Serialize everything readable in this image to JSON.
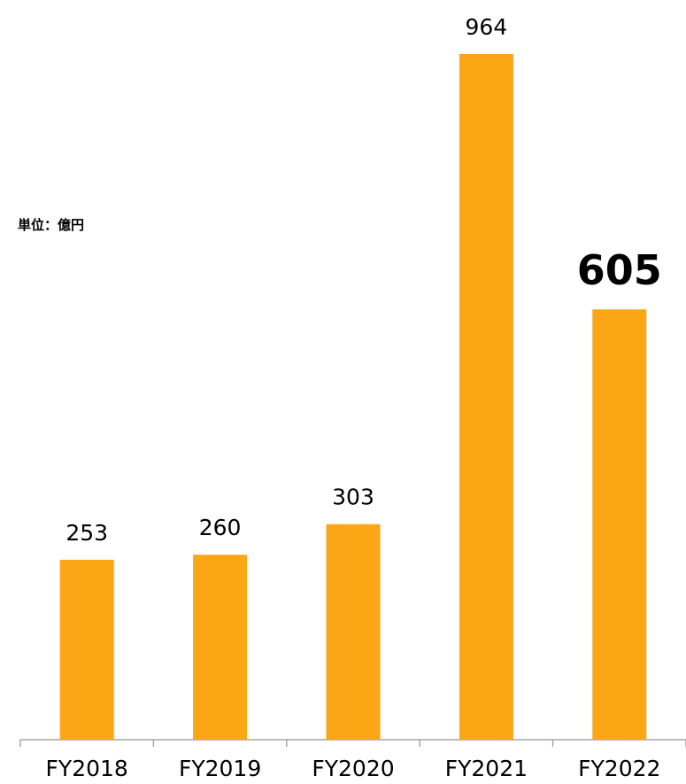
{
  "unit_label": "単位：億円",
  "colors": {
    "bar": "#FBA614",
    "axis": "#A6A6A6",
    "text": "#000000"
  },
  "chart_data": {
    "type": "bar",
    "title": "",
    "xlabel": "",
    "ylabel": "",
    "unit": "単位：億円",
    "categories": [
      "FY2018",
      "FY2019",
      "FY2020",
      "FY2021",
      "FY2022"
    ],
    "values": [
      253,
      260,
      303,
      964,
      605
    ],
    "value_labels": [
      "253",
      "260",
      "303",
      "964",
      "605"
    ],
    "highlight_index": 4,
    "ylim": [
      0,
      964
    ],
    "grid": false,
    "legend": "none"
  }
}
